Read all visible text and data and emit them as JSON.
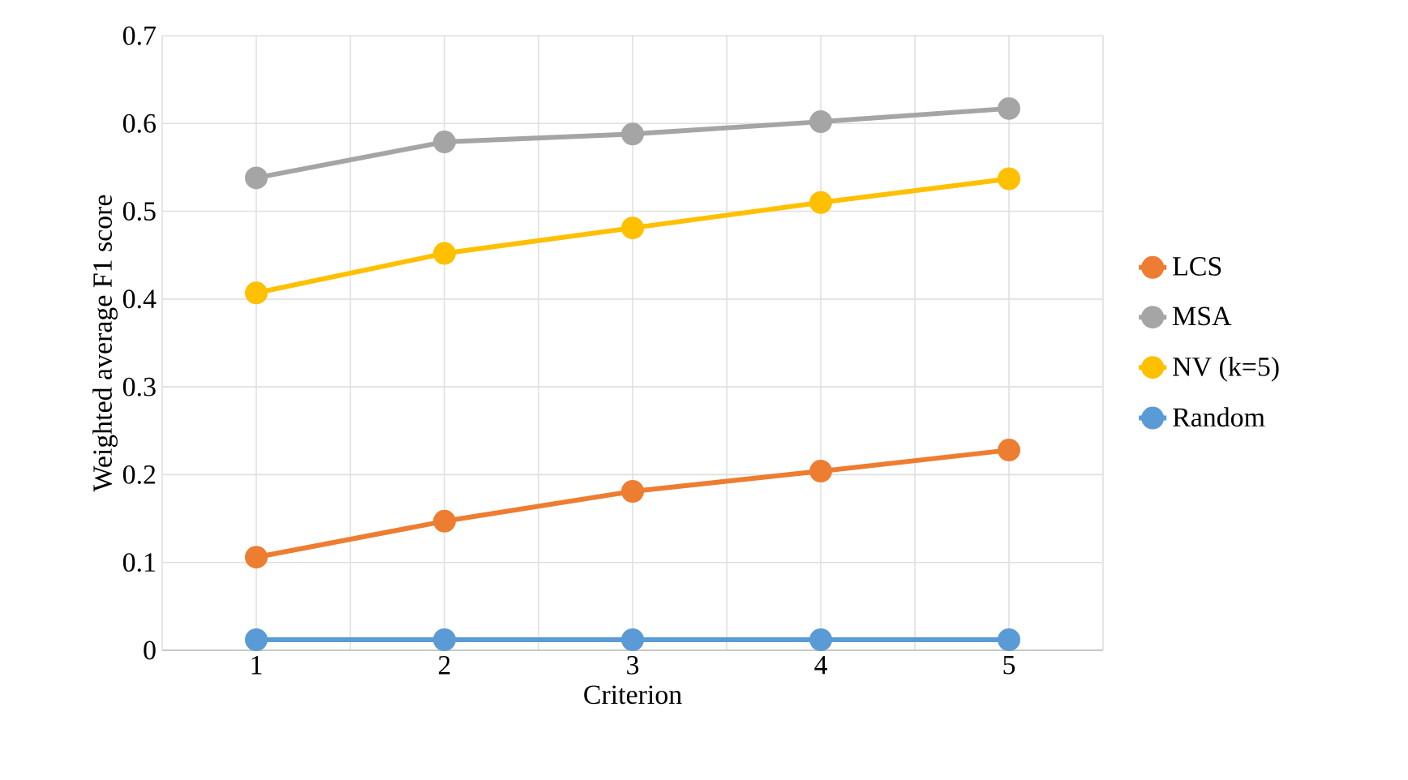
{
  "chart_data": {
    "type": "line",
    "xlabel": "Criterion",
    "ylabel": "Weighted average F1 score",
    "categories": [
      "1",
      "2",
      "3",
      "4",
      "5"
    ],
    "series": [
      {
        "name": "LCS",
        "color": "#ed7d31",
        "values": [
          0.106,
          0.147,
          0.181,
          0.204,
          0.228
        ]
      },
      {
        "name": "MSA",
        "color": "#a5a5a5",
        "values": [
          0.538,
          0.579,
          0.588,
          0.602,
          0.617
        ]
      },
      {
        "name": "NV (k=5)",
        "color": "#ffc000",
        "values": [
          0.407,
          0.452,
          0.481,
          0.51,
          0.537
        ]
      },
      {
        "name": "Random",
        "color": "#5b9bd5",
        "values": [
          0.012,
          0.012,
          0.012,
          0.012,
          0.012
        ]
      }
    ],
    "ylim": [
      0,
      0.7
    ],
    "yticks": [
      0,
      0.1,
      0.2,
      0.3,
      0.4,
      0.5,
      0.6,
      0.7
    ],
    "grid": true,
    "legend": "right",
    "marker": "circle",
    "line_style": "solid"
  }
}
